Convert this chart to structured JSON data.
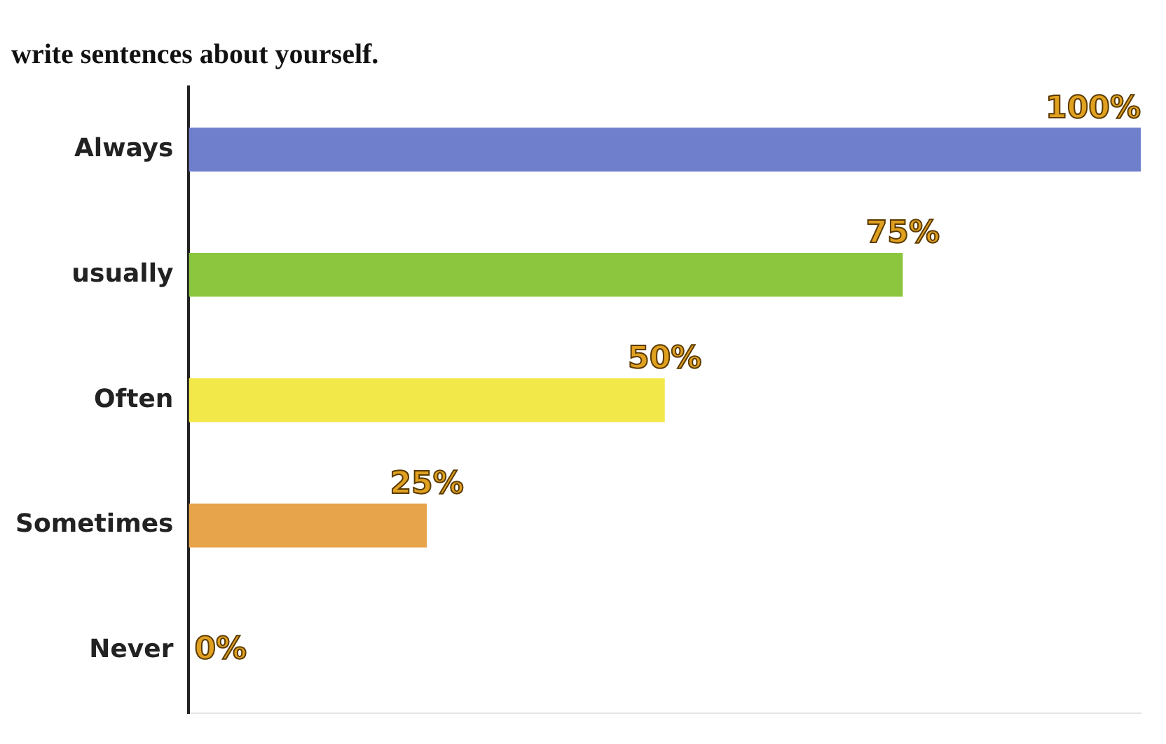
{
  "chart_data": {
    "type": "bar",
    "orientation": "horizontal",
    "title": "write sentences about yourself.",
    "categories": [
      "Always",
      "usually",
      "Often",
      "Sometimes",
      "Never"
    ],
    "values": [
      100,
      75,
      50,
      25,
      0
    ],
    "colors": [
      "#6f7fcc",
      "#8cc63f",
      "#f3e84a",
      "#e8a44a",
      "#d9534f"
    ],
    "value_labels": [
      "100%",
      "75%",
      "50%",
      "25%",
      "0%"
    ],
    "xlim": [
      0,
      100
    ],
    "tick_labels": "y",
    "grid": false,
    "legend": false
  }
}
